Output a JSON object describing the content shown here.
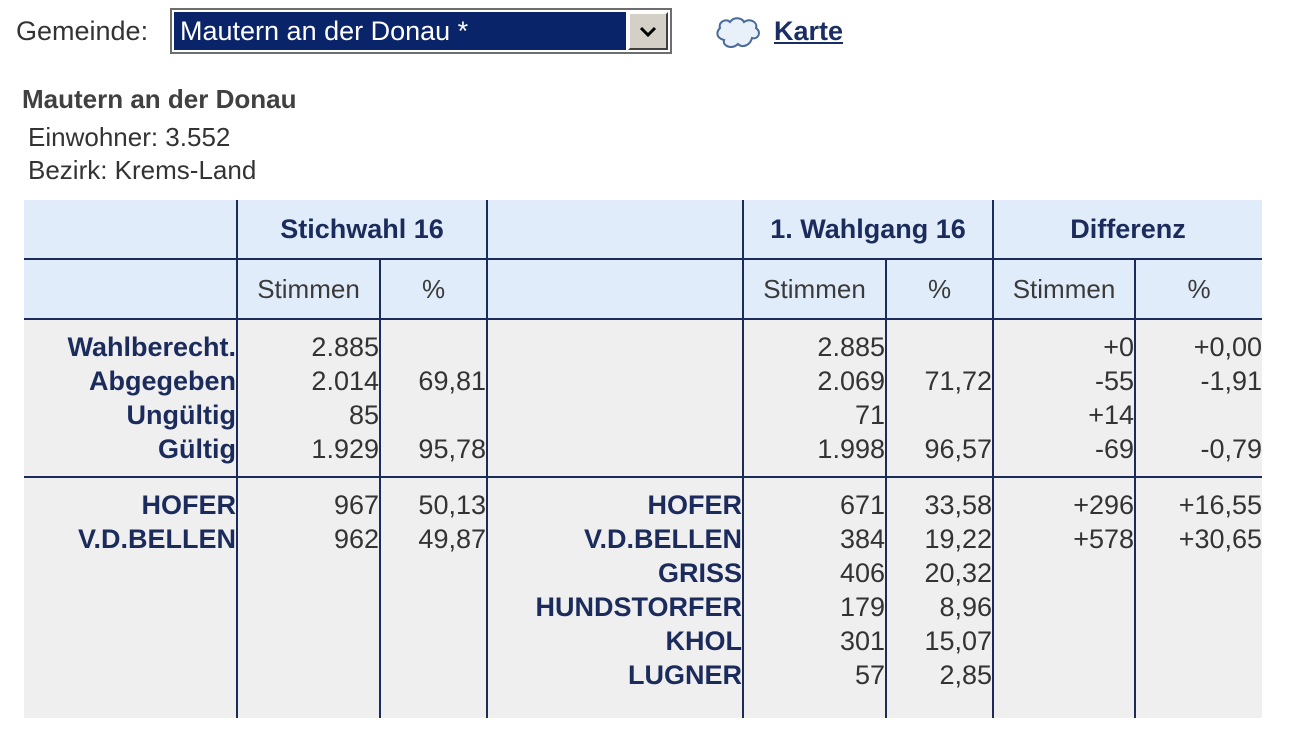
{
  "header": {
    "gemeinde_label": "Gemeinde:",
    "selected_value": "Mautern an der Donau *",
    "map_link": "Karte"
  },
  "municipality": {
    "name": "Mautern an der Donau",
    "einwohner": "Einwohner: 3.552",
    "bezirk": "Bezirk: Krems-Land"
  },
  "table": {
    "group_headers": [
      "",
      "Stichwahl 16",
      "",
      "1. Wahlgang 16",
      "Differenz"
    ],
    "sub_headers": [
      "",
      "Stimmen",
      "%",
      "",
      "Stimmen",
      "%",
      "Stimmen",
      "%"
    ],
    "summary": {
      "labels": [
        "Wahlberecht.",
        "Abgegeben",
        "Ungültig",
        "Gültig"
      ],
      "stich_stimmen": [
        "2.885",
        "2.014",
        "85",
        "1.929"
      ],
      "stich_pct": [
        "",
        "69,81",
        "",
        "95,78"
      ],
      "wg_stimmen": [
        "2.885",
        "2.069",
        "71",
        "1.998"
      ],
      "wg_pct": [
        "",
        "71,72",
        "",
        "96,57"
      ],
      "diff_stimmen": [
        "+0",
        "-55",
        "+14",
        "-69"
      ],
      "diff_pct": [
        "+0,00",
        "-1,91",
        "",
        "-0,79"
      ]
    },
    "candidates": {
      "stich_names": [
        "HOFER",
        "V.D.BELLEN"
      ],
      "stich_stimmen": [
        "967",
        "962"
      ],
      "stich_pct": [
        "50,13",
        "49,87"
      ],
      "wg_names": [
        "HOFER",
        "V.D.BELLEN",
        "GRISS",
        "HUNDSTORFER",
        "KHOL",
        "LUGNER"
      ],
      "wg_stimmen": [
        "671",
        "384",
        "406",
        "179",
        "301",
        "57"
      ],
      "wg_pct": [
        "33,58",
        "19,22",
        "20,32",
        "8,96",
        "15,07",
        "2,85"
      ],
      "diff_stimmen": [
        "+296",
        "+578"
      ],
      "diff_pct": [
        "+16,55",
        "+30,65"
      ]
    }
  }
}
